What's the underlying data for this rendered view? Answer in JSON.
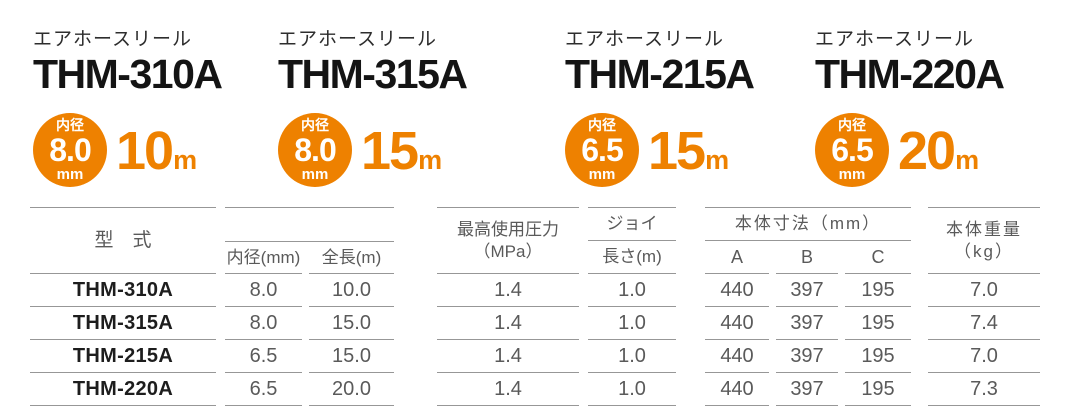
{
  "accent_color": "#ee8100",
  "line_color": "#979797",
  "products": [
    {
      "category": "エアホースリール",
      "model": "THM-310A",
      "bore_label": "内径",
      "bore": "8.0",
      "bore_unit": "mm",
      "length": "10",
      "length_unit": "m"
    },
    {
      "category": "エアホースリール",
      "model": "THM-315A",
      "bore_label": "内径",
      "bore": "8.0",
      "bore_unit": "mm",
      "length": "15",
      "length_unit": "m"
    },
    {
      "category": "エアホースリール",
      "model": "THM-215A",
      "bore_label": "内径",
      "bore": "6.5",
      "bore_unit": "mm",
      "length": "15",
      "length_unit": "m"
    },
    {
      "category": "エアホースリール",
      "model": "THM-220A",
      "bore_label": "内径",
      "bore": "6.5",
      "bore_unit": "mm",
      "length": "20",
      "length_unit": "m"
    }
  ],
  "spec_table": {
    "headers": {
      "model": "型　式",
      "bore": "内径(mm)",
      "length": "全長(m)",
      "pressure_line1": "最高使用圧力",
      "pressure_line2": "（MPa）",
      "joint_line1": "ジョイ",
      "joint_line2": "長さ(m)",
      "dims": "本体寸法（mm）",
      "dim_a": "A",
      "dim_b": "B",
      "dim_c": "C",
      "weight_line1": "本体重量",
      "weight_line2": "（kg）"
    },
    "rows": [
      {
        "model": "THM-310A",
        "bore": "8.0",
        "length": "10.0",
        "pressure": "1.4",
        "joint_length": "1.0",
        "dim_a": "440",
        "dim_b": "397",
        "dim_c": "195",
        "weight": "7.0"
      },
      {
        "model": "THM-315A",
        "bore": "8.0",
        "length": "15.0",
        "pressure": "1.4",
        "joint_length": "1.0",
        "dim_a": "440",
        "dim_b": "397",
        "dim_c": "195",
        "weight": "7.4"
      },
      {
        "model": "THM-215A",
        "bore": "6.5",
        "length": "15.0",
        "pressure": "1.4",
        "joint_length": "1.0",
        "dim_a": "440",
        "dim_b": "397",
        "dim_c": "195",
        "weight": "7.0"
      },
      {
        "model": "THM-220A",
        "bore": "6.5",
        "length": "20.0",
        "pressure": "1.4",
        "joint_length": "1.0",
        "dim_a": "440",
        "dim_b": "397",
        "dim_c": "195",
        "weight": "7.3"
      }
    ]
  }
}
